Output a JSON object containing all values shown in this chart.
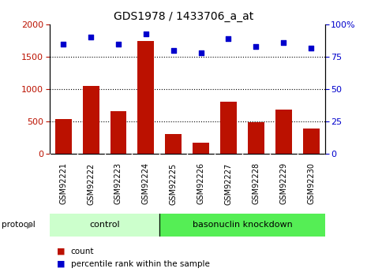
{
  "title": "GDS1978 / 1433706_a_at",
  "samples": [
    "GSM92221",
    "GSM92222",
    "GSM92223",
    "GSM92224",
    "GSM92225",
    "GSM92226",
    "GSM92227",
    "GSM92228",
    "GSM92229",
    "GSM92230"
  ],
  "counts": [
    540,
    1050,
    660,
    1750,
    310,
    165,
    810,
    490,
    680,
    395
  ],
  "percentile_ranks": [
    85,
    90,
    85,
    93,
    80,
    78,
    89,
    83,
    86,
    82
  ],
  "ylim_left": [
    0,
    2000
  ],
  "ylim_right": [
    0,
    100
  ],
  "yticks_left": [
    0,
    500,
    1000,
    1500,
    2000
  ],
  "yticks_right": [
    0,
    25,
    50,
    75,
    100
  ],
  "bar_color": "#bb1100",
  "dot_color": "#0000cc",
  "control_group_count": 4,
  "knockdown_group_count": 6,
  "control_label": "control",
  "knockdown_label": "basonuclin knockdown",
  "protocol_label": "protocol",
  "legend_count": "count",
  "legend_percentile": "percentile rank within the sample",
  "control_bg": "#ccffcc",
  "knockdown_bg": "#55ee55",
  "xlabel_bg": "#cccccc",
  "plot_bg": "#ffffff"
}
